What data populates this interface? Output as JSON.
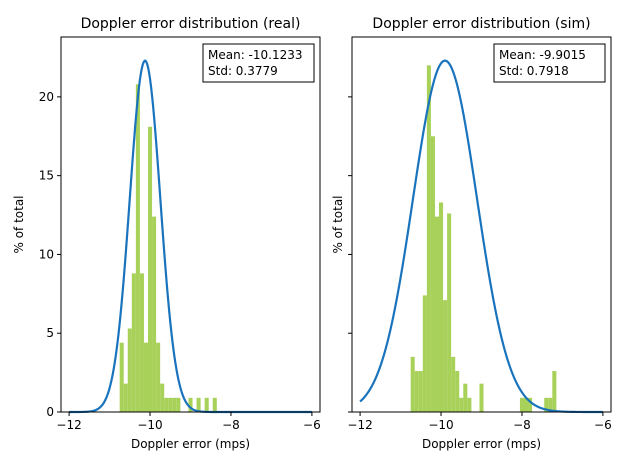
{
  "chart_data": [
    {
      "type": "histogram",
      "title": "Doppler error distribution (real)",
      "xlabel": "Doppler error (mps)",
      "ylabel": "% of total",
      "xlim": [
        -12.2,
        -5.8
      ],
      "ylim": [
        0,
        23.8
      ],
      "xticks": [
        -12,
        -10,
        -8,
        -6
      ],
      "xtick_labels": [
        "−12",
        "−10",
        "−8",
        "−6"
      ],
      "yticks": [
        0,
        5,
        10,
        15,
        20
      ],
      "ytick_labels": [
        "0",
        "5",
        "10",
        "15",
        "20"
      ],
      "bar_color": "#a8d15a",
      "curve_color": "#1a74bd",
      "bins": [
        {
          "x0": -10.75,
          "x1": -10.65,
          "value": 4.4
        },
        {
          "x0": -10.65,
          "x1": -10.55,
          "value": 1.8
        },
        {
          "x0": -10.55,
          "x1": -10.45,
          "value": 5.3
        },
        {
          "x0": -10.45,
          "x1": -10.35,
          "value": 8.8
        },
        {
          "x0": -10.35,
          "x1": -10.25,
          "value": 20.8
        },
        {
          "x0": -10.25,
          "x1": -10.15,
          "value": 8.8
        },
        {
          "x0": -10.15,
          "x1": -10.05,
          "value": 4.4
        },
        {
          "x0": -10.05,
          "x1": -9.95,
          "value": 18.1
        },
        {
          "x0": -9.95,
          "x1": -9.85,
          "value": 12.4
        },
        {
          "x0": -9.85,
          "x1": -9.75,
          "value": 4.4
        },
        {
          "x0": -9.75,
          "x1": -9.65,
          "value": 1.8
        },
        {
          "x0": -9.65,
          "x1": -9.55,
          "value": 0.9
        },
        {
          "x0": -9.55,
          "x1": -9.45,
          "value": 0.9
        },
        {
          "x0": -9.45,
          "x1": -9.35,
          "value": 0.9
        },
        {
          "x0": -9.35,
          "x1": -9.25,
          "value": 0.9
        },
        {
          "x0": -9.05,
          "x1": -8.95,
          "value": 0.9
        },
        {
          "x0": -8.85,
          "x1": -8.75,
          "value": 0.9
        },
        {
          "x0": -8.65,
          "x1": -8.55,
          "value": 0.9
        },
        {
          "x0": -8.45,
          "x1": -8.35,
          "value": 0.9
        }
      ],
      "normal_fit": {
        "mean": -10.1233,
        "std": 0.3779,
        "peak": 22.3,
        "x_range": [
          -12,
          -6
        ]
      },
      "stats": {
        "mean_label": "Mean: -10.1233",
        "std_label": "Std: 0.3779"
      },
      "legend_position": "top-right"
    },
    {
      "type": "histogram",
      "title": "Doppler error distribution (sim)",
      "xlabel": "Doppler error (mps)",
      "ylabel": "% of total",
      "xlim": [
        -12.2,
        -5.8
      ],
      "ylim": [
        0,
        23.8
      ],
      "xticks": [
        -12,
        -10,
        -8,
        -6
      ],
      "xtick_labels": [
        "−12",
        "−10",
        "−8",
        "−6"
      ],
      "yticks": [
        0,
        5,
        10,
        15,
        20
      ],
      "ytick_labels": [
        "0",
        "5",
        "10",
        "15",
        "20"
      ],
      "bar_color": "#a8d15a",
      "curve_color": "#1a74bd",
      "bins": [
        {
          "x0": -10.75,
          "x1": -10.65,
          "value": 3.5
        },
        {
          "x0": -10.65,
          "x1": -10.55,
          "value": 2.6
        },
        {
          "x0": -10.55,
          "x1": -10.45,
          "value": 2.6
        },
        {
          "x0": -10.45,
          "x1": -10.35,
          "value": 7.4
        },
        {
          "x0": -10.35,
          "x1": -10.25,
          "value": 22.0
        },
        {
          "x0": -10.25,
          "x1": -10.15,
          "value": 17.5
        },
        {
          "x0": -10.15,
          "x1": -10.05,
          "value": 12.4
        },
        {
          "x0": -10.05,
          "x1": -9.95,
          "value": 13.3
        },
        {
          "x0": -9.95,
          "x1": -9.85,
          "value": 7.1
        },
        {
          "x0": -9.85,
          "x1": -9.75,
          "value": 12.6
        },
        {
          "x0": -9.75,
          "x1": -9.65,
          "value": 3.5
        },
        {
          "x0": -9.65,
          "x1": -9.55,
          "value": 2.6
        },
        {
          "x0": -9.55,
          "x1": -9.45,
          "value": 0.9
        },
        {
          "x0": -9.45,
          "x1": -9.35,
          "value": 1.8
        },
        {
          "x0": -9.35,
          "x1": -9.25,
          "value": 0.9
        },
        {
          "x0": -9.05,
          "x1": -8.95,
          "value": 1.8
        },
        {
          "x0": -8.05,
          "x1": -7.95,
          "value": 0.9
        },
        {
          "x0": -7.95,
          "x1": -7.85,
          "value": 0.9
        },
        {
          "x0": -7.85,
          "x1": -7.75,
          "value": 0.9
        },
        {
          "x0": -7.45,
          "x1": -7.35,
          "value": 0.9
        },
        {
          "x0": -7.35,
          "x1": -7.25,
          "value": 0.9
        },
        {
          "x0": -7.25,
          "x1": -7.15,
          "value": 2.6
        }
      ],
      "normal_fit": {
        "mean": -9.9015,
        "std": 0.7918,
        "peak": 22.3,
        "x_range": [
          -12,
          -6
        ]
      },
      "stats": {
        "mean_label": "Mean: -9.9015",
        "std_label": "Std: 0.7918"
      },
      "legend_position": "top-right"
    }
  ]
}
